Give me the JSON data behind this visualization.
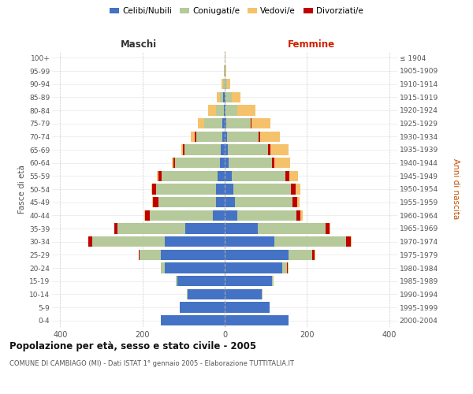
{
  "age_groups": [
    "0-4",
    "5-9",
    "10-14",
    "15-19",
    "20-24",
    "25-29",
    "30-34",
    "35-39",
    "40-44",
    "45-49",
    "50-54",
    "55-59",
    "60-64",
    "65-69",
    "70-74",
    "75-79",
    "80-84",
    "85-89",
    "90-94",
    "95-99",
    "100+"
  ],
  "birth_years": [
    "2000-2004",
    "1995-1999",
    "1990-1994",
    "1985-1989",
    "1980-1984",
    "1975-1979",
    "1970-1974",
    "1965-1969",
    "1960-1964",
    "1955-1959",
    "1950-1954",
    "1945-1949",
    "1940-1944",
    "1935-1939",
    "1930-1934",
    "1925-1929",
    "1920-1924",
    "1915-1919",
    "1910-1914",
    "1905-1909",
    "≤ 1904"
  ],
  "maschi_celibi": [
    155,
    110,
    90,
    115,
    145,
    155,
    145,
    95,
    28,
    22,
    22,
    18,
    12,
    10,
    5,
    5,
    2,
    3,
    0,
    0,
    0
  ],
  "maschi_coniugati": [
    0,
    0,
    2,
    3,
    10,
    52,
    178,
    165,
    155,
    140,
    145,
    135,
    108,
    88,
    65,
    45,
    20,
    8,
    3,
    1,
    0
  ],
  "maschi_vedovi": [
    0,
    0,
    0,
    0,
    0,
    0,
    1,
    1,
    2,
    2,
    2,
    3,
    4,
    5,
    10,
    15,
    18,
    8,
    4,
    1,
    0
  ],
  "maschi_divorziati": [
    0,
    0,
    0,
    0,
    1,
    2,
    8,
    8,
    10,
    13,
    10,
    8,
    4,
    3,
    3,
    0,
    0,
    0,
    0,
    0,
    0
  ],
  "femmine_celibi": [
    155,
    110,
    90,
    115,
    140,
    155,
    120,
    80,
    30,
    25,
    22,
    18,
    10,
    8,
    5,
    4,
    2,
    2,
    0,
    0,
    0
  ],
  "femmine_coniugati": [
    0,
    0,
    2,
    3,
    12,
    58,
    175,
    165,
    145,
    140,
    140,
    130,
    105,
    98,
    78,
    60,
    28,
    15,
    5,
    1,
    0
  ],
  "femmine_vedovi": [
    0,
    0,
    0,
    0,
    1,
    2,
    2,
    2,
    5,
    5,
    12,
    20,
    40,
    45,
    48,
    45,
    45,
    22,
    8,
    2,
    1
  ],
  "femmine_divorziati": [
    0,
    0,
    0,
    0,
    2,
    5,
    12,
    10,
    10,
    12,
    10,
    10,
    5,
    5,
    3,
    2,
    0,
    0,
    0,
    0,
    0
  ],
  "color_celibi": "#4472c4",
  "color_coniugati": "#b5c99a",
  "color_vedovi": "#f5c26b",
  "color_divorziati": "#c00000",
  "title": "Popolazione per età, sesso e stato civile - 2005",
  "subtitle": "COMUNE DI CAMBIAGO (MI) - Dati ISTAT 1° gennaio 2005 - Elaborazione TUTTITALIA.IT",
  "ylabel_left": "Fasce di età",
  "ylabel_right": "Anni di nascita",
  "header_maschi": "Maschi",
  "header_femmine": "Femmine",
  "legend_labels": [
    "Celibi/Nubili",
    "Coniugati/e",
    "Vedovi/e",
    "Divorziati/e"
  ],
  "xlim": 420,
  "background_color": "#ffffff",
  "grid_color": "#cccccc"
}
